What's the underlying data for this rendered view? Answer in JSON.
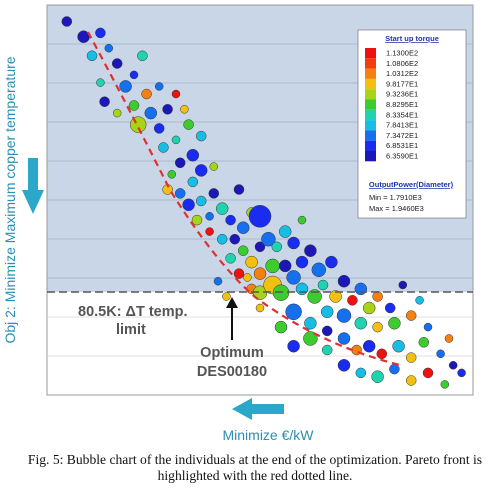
{
  "chart_data": {
    "type": "scatter",
    "subtype": "bubble",
    "xlabel": "Minimize €/kW",
    "ylabel": "Obj 2: Minimize Maximum copper temperature",
    "legend": {
      "title": "Start up torque",
      "position": "top-right",
      "color_scale": [
        {
          "label": "1.1300E2",
          "color": "#ee1111"
        },
        {
          "label": "1.0806E2",
          "color": "#f23d0c"
        },
        {
          "label": "1.0312E2",
          "color": "#f5800f"
        },
        {
          "label": "9.8177E1",
          "color": "#f2c010"
        },
        {
          "label": "9.3236E1",
          "color": "#a8d418"
        },
        {
          "label": "8.8295E1",
          "color": "#3ccc2e"
        },
        {
          "label": "8.3354E1",
          "color": "#20d2b0"
        },
        {
          "label": "7.8413E1",
          "color": "#18bde6"
        },
        {
          "label": "7.3472E1",
          "color": "#1670ee"
        },
        {
          "label": "6.8531E1",
          "color": "#1a2cf0"
        },
        {
          "label": "6.3590E1",
          "color": "#1c18b8"
        }
      ],
      "size_title": "OutputPower(Diameter)",
      "size_min": "Min = 1.7910E3",
      "size_max": "Max = 1.9460E3"
    },
    "annotations": {
      "limit_line": "80.5K: ΔT temp. limit",
      "optimum": "Optimum DES00180"
    },
    "pareto_front_color": "#e03030",
    "limit_line_color": "#555555",
    "feasible_region_color": "#c9d6e8",
    "points": [
      {
        "x": 0.04,
        "y": 0.03,
        "r": 5,
        "c": "#1c18b8"
      },
      {
        "x": 0.08,
        "y": 0.07,
        "r": 6,
        "c": "#1c18b8"
      },
      {
        "x": 0.12,
        "y": 0.06,
        "r": 5,
        "c": "#1a2cf0"
      },
      {
        "x": 0.1,
        "y": 0.12,
        "r": 5,
        "c": "#18bde6"
      },
      {
        "x": 0.14,
        "y": 0.1,
        "r": 4,
        "c": "#1670ee"
      },
      {
        "x": 0.16,
        "y": 0.14,
        "r": 5,
        "c": "#1c18b8"
      },
      {
        "x": 0.12,
        "y": 0.19,
        "r": 4,
        "c": "#20d2b0"
      },
      {
        "x": 0.18,
        "y": 0.2,
        "r": 6,
        "c": "#1670ee"
      },
      {
        "x": 0.2,
        "y": 0.17,
        "r": 4,
        "c": "#1a2cf0"
      },
      {
        "x": 0.13,
        "y": 0.24,
        "r": 5,
        "c": "#1c18b8"
      },
      {
        "x": 0.2,
        "y": 0.25,
        "r": 5,
        "c": "#3ccc2e"
      },
      {
        "x": 0.23,
        "y": 0.22,
        "r": 5,
        "c": "#f5800f"
      },
      {
        "x": 0.16,
        "y": 0.27,
        "r": 4,
        "c": "#a8d418"
      },
      {
        "x": 0.24,
        "y": 0.27,
        "r": 6,
        "c": "#1670ee"
      },
      {
        "x": 0.21,
        "y": 0.3,
        "r": 8,
        "c": "#a8d418"
      },
      {
        "x": 0.26,
        "y": 0.31,
        "r": 5,
        "c": "#1a2cf0"
      },
      {
        "x": 0.28,
        "y": 0.26,
        "r": 5,
        "c": "#1c18b8"
      },
      {
        "x": 0.3,
        "y": 0.22,
        "r": 4,
        "c": "#ee1111"
      },
      {
        "x": 0.27,
        "y": 0.36,
        "r": 5,
        "c": "#18bde6"
      },
      {
        "x": 0.3,
        "y": 0.34,
        "r": 4,
        "c": "#20d2b0"
      },
      {
        "x": 0.33,
        "y": 0.3,
        "r": 5,
        "c": "#3ccc2e"
      },
      {
        "x": 0.34,
        "y": 0.38,
        "r": 6,
        "c": "#1a2cf0"
      },
      {
        "x": 0.31,
        "y": 0.4,
        "r": 5,
        "c": "#1c18b8"
      },
      {
        "x": 0.29,
        "y": 0.43,
        "r": 4,
        "c": "#3ccc2e"
      },
      {
        "x": 0.28,
        "y": 0.47,
        "r": 5,
        "c": "#f2c010"
      },
      {
        "x": 0.31,
        "y": 0.48,
        "r": 5,
        "c": "#1670ee"
      },
      {
        "x": 0.34,
        "y": 0.45,
        "r": 5,
        "c": "#18bde6"
      },
      {
        "x": 0.36,
        "y": 0.42,
        "r": 6,
        "c": "#1a2cf0"
      },
      {
        "x": 0.39,
        "y": 0.41,
        "r": 4,
        "c": "#a8d418"
      },
      {
        "x": 0.33,
        "y": 0.51,
        "r": 6,
        "c": "#1a2cf0"
      },
      {
        "x": 0.36,
        "y": 0.5,
        "r": 5,
        "c": "#18bde6"
      },
      {
        "x": 0.39,
        "y": 0.48,
        "r": 5,
        "c": "#1c18b8"
      },
      {
        "x": 0.35,
        "y": 0.55,
        "r": 5,
        "c": "#a8d418"
      },
      {
        "x": 0.38,
        "y": 0.54,
        "r": 4,
        "c": "#1670ee"
      },
      {
        "x": 0.41,
        "y": 0.52,
        "r": 6,
        "c": "#20d2b0"
      },
      {
        "x": 0.43,
        "y": 0.55,
        "r": 5,
        "c": "#1a2cf0"
      },
      {
        "x": 0.38,
        "y": 0.58,
        "r": 4,
        "c": "#ee1111"
      },
      {
        "x": 0.41,
        "y": 0.6,
        "r": 5,
        "c": "#18bde6"
      },
      {
        "x": 0.44,
        "y": 0.6,
        "r": 5,
        "c": "#1c18b8"
      },
      {
        "x": 0.46,
        "y": 0.57,
        "r": 6,
        "c": "#1670ee"
      },
      {
        "x": 0.48,
        "y": 0.53,
        "r": 5,
        "c": "#a8d418"
      },
      {
        "x": 0.5,
        "y": 0.54,
        "r": 11,
        "c": "#1a2cf0"
      },
      {
        "x": 0.46,
        "y": 0.63,
        "r": 5,
        "c": "#3ccc2e"
      },
      {
        "x": 0.43,
        "y": 0.65,
        "r": 5,
        "c": "#20d2b0"
      },
      {
        "x": 0.48,
        "y": 0.66,
        "r": 6,
        "c": "#f2c010"
      },
      {
        "x": 0.5,
        "y": 0.62,
        "r": 5,
        "c": "#1c18b8"
      },
      {
        "x": 0.52,
        "y": 0.6,
        "r": 7,
        "c": "#1670ee"
      },
      {
        "x": 0.54,
        "y": 0.62,
        "r": 5,
        "c": "#20d2b0"
      },
      {
        "x": 0.56,
        "y": 0.58,
        "r": 6,
        "c": "#18bde6"
      },
      {
        "x": 0.58,
        "y": 0.61,
        "r": 6,
        "c": "#1a2cf0"
      },
      {
        "x": 0.53,
        "y": 0.67,
        "r": 7,
        "c": "#3ccc2e"
      },
      {
        "x": 0.56,
        "y": 0.67,
        "r": 6,
        "c": "#1c18b8"
      },
      {
        "x": 0.5,
        "y": 0.69,
        "r": 6,
        "c": "#f5800f"
      },
      {
        "x": 0.47,
        "y": 0.7,
        "r": 4,
        "c": "#f2c010"
      },
      {
        "x": 0.45,
        "y": 0.69,
        "r": 5,
        "c": "#ee1111"
      },
      {
        "x": 0.48,
        "y": 0.73,
        "r": 5,
        "c": "#f5800f"
      },
      {
        "x": 0.5,
        "y": 0.74,
        "r": 7,
        "c": "#a8d418"
      },
      {
        "x": 0.53,
        "y": 0.72,
        "r": 9,
        "c": "#f2c010"
      },
      {
        "x": 0.55,
        "y": 0.74,
        "r": 8,
        "c": "#3ccc2e"
      },
      {
        "x": 0.58,
        "y": 0.7,
        "r": 7,
        "c": "#1670ee"
      },
      {
        "x": 0.6,
        "y": 0.66,
        "r": 6,
        "c": "#1a2cf0"
      },
      {
        "x": 0.62,
        "y": 0.63,
        "r": 6,
        "c": "#1c18b8"
      },
      {
        "x": 0.64,
        "y": 0.68,
        "r": 7,
        "c": "#1670ee"
      },
      {
        "x": 0.67,
        "y": 0.66,
        "r": 6,
        "c": "#1a2cf0"
      },
      {
        "x": 0.6,
        "y": 0.73,
        "r": 6,
        "c": "#18bde6"
      },
      {
        "x": 0.63,
        "y": 0.75,
        "r": 7,
        "c": "#3ccc2e"
      },
      {
        "x": 0.65,
        "y": 0.72,
        "r": 5,
        "c": "#20d2b0"
      },
      {
        "x": 0.68,
        "y": 0.75,
        "r": 6,
        "c": "#f2c010"
      },
      {
        "x": 0.7,
        "y": 0.71,
        "r": 6,
        "c": "#1c18b8"
      },
      {
        "x": 0.72,
        "y": 0.76,
        "r": 5,
        "c": "#ee1111"
      },
      {
        "x": 0.74,
        "y": 0.73,
        "r": 6,
        "c": "#1670ee"
      },
      {
        "x": 0.76,
        "y": 0.78,
        "r": 6,
        "c": "#a8d418"
      },
      {
        "x": 0.78,
        "y": 0.75,
        "r": 5,
        "c": "#f5800f"
      },
      {
        "x": 0.81,
        "y": 0.78,
        "r": 5,
        "c": "#1a2cf0"
      },
      {
        "x": 0.66,
        "y": 0.79,
        "r": 6,
        "c": "#18bde6"
      },
      {
        "x": 0.7,
        "y": 0.8,
        "r": 7,
        "c": "#1670ee"
      },
      {
        "x": 0.74,
        "y": 0.82,
        "r": 6,
        "c": "#20d2b0"
      },
      {
        "x": 0.78,
        "y": 0.83,
        "r": 5,
        "c": "#f2c010"
      },
      {
        "x": 0.82,
        "y": 0.82,
        "r": 6,
        "c": "#3ccc2e"
      },
      {
        "x": 0.86,
        "y": 0.8,
        "r": 5,
        "c": "#f5800f"
      },
      {
        "x": 0.84,
        "y": 0.72,
        "r": 4,
        "c": "#1c18b8"
      },
      {
        "x": 0.88,
        "y": 0.76,
        "r": 4,
        "c": "#18bde6"
      },
      {
        "x": 0.9,
        "y": 0.83,
        "r": 4,
        "c": "#1670ee"
      },
      {
        "x": 0.58,
        "y": 0.79,
        "r": 8,
        "c": "#1670ee"
      },
      {
        "x": 0.62,
        "y": 0.82,
        "r": 6,
        "c": "#18bde6"
      },
      {
        "x": 0.55,
        "y": 0.83,
        "r": 6,
        "c": "#3ccc2e"
      },
      {
        "x": 0.66,
        "y": 0.84,
        "r": 5,
        "c": "#1c18b8"
      },
      {
        "x": 0.62,
        "y": 0.86,
        "r": 7,
        "c": "#3ccc2e"
      },
      {
        "x": 0.58,
        "y": 0.88,
        "r": 6,
        "c": "#1a2cf0"
      },
      {
        "x": 0.66,
        "y": 0.89,
        "r": 5,
        "c": "#20d2b0"
      },
      {
        "x": 0.7,
        "y": 0.86,
        "r": 6,
        "c": "#1670ee"
      },
      {
        "x": 0.73,
        "y": 0.89,
        "r": 5,
        "c": "#f5800f"
      },
      {
        "x": 0.76,
        "y": 0.88,
        "r": 6,
        "c": "#1a2cf0"
      },
      {
        "x": 0.79,
        "y": 0.9,
        "r": 5,
        "c": "#ee1111"
      },
      {
        "x": 0.83,
        "y": 0.88,
        "r": 6,
        "c": "#18bde6"
      },
      {
        "x": 0.86,
        "y": 0.91,
        "r": 5,
        "c": "#f2c010"
      },
      {
        "x": 0.89,
        "y": 0.87,
        "r": 5,
        "c": "#3ccc2e"
      },
      {
        "x": 0.93,
        "y": 0.9,
        "r": 4,
        "c": "#1670ee"
      },
      {
        "x": 0.95,
        "y": 0.86,
        "r": 4,
        "c": "#f5800f"
      },
      {
        "x": 0.96,
        "y": 0.93,
        "r": 4,
        "c": "#1c18b8"
      },
      {
        "x": 0.7,
        "y": 0.93,
        "r": 6,
        "c": "#1a2cf0"
      },
      {
        "x": 0.74,
        "y": 0.95,
        "r": 5,
        "c": "#18bde6"
      },
      {
        "x": 0.78,
        "y": 0.96,
        "r": 6,
        "c": "#20d2b0"
      },
      {
        "x": 0.82,
        "y": 0.94,
        "r": 5,
        "c": "#1670ee"
      },
      {
        "x": 0.86,
        "y": 0.97,
        "r": 5,
        "c": "#f2c010"
      },
      {
        "x": 0.9,
        "y": 0.95,
        "r": 5,
        "c": "#ee1111"
      },
      {
        "x": 0.94,
        "y": 0.98,
        "r": 4,
        "c": "#3ccc2e"
      },
      {
        "x": 0.98,
        "y": 0.95,
        "r": 4,
        "c": "#1a2cf0"
      },
      {
        "x": 0.42,
        "y": 0.75,
        "r": 4,
        "c": "#f2c010"
      },
      {
        "x": 0.4,
        "y": 0.71,
        "r": 4,
        "c": "#1670ee"
      },
      {
        "x": 0.26,
        "y": 0.2,
        "r": 4,
        "c": "#1670ee"
      },
      {
        "x": 0.22,
        "y": 0.12,
        "r": 5,
        "c": "#20d2b0"
      },
      {
        "x": 0.32,
        "y": 0.26,
        "r": 4,
        "c": "#f2c010"
      },
      {
        "x": 0.36,
        "y": 0.33,
        "r": 5,
        "c": "#18bde6"
      },
      {
        "x": 0.45,
        "y": 0.47,
        "r": 5,
        "c": "#1c18b8"
      },
      {
        "x": 0.6,
        "y": 0.55,
        "r": 4,
        "c": "#3ccc2e"
      },
      {
        "x": 0.5,
        "y": 0.78,
        "r": 4,
        "c": "#f2c010"
      }
    ]
  },
  "caption": "Fig. 5: Bubble chart of the individuals at the end of the optimization. Pareto front is highlighted with the red dotted line."
}
